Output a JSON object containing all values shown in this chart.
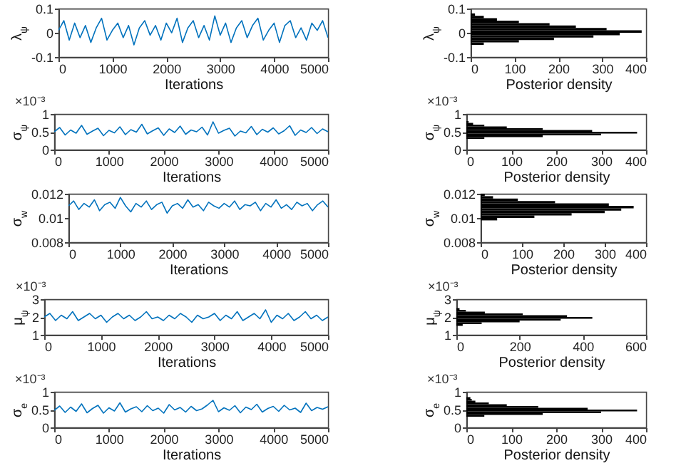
{
  "chart_data": [
    {
      "type": "line",
      "xlabel": "Iterations",
      "ylabel": "λ$_{ψ}$",
      "color": "#0072bd",
      "xlim": [
        0,
        5000
      ],
      "xticks": [
        0,
        1000,
        2000,
        3000,
        4000,
        5000
      ],
      "ylim": [
        -0.1,
        0.1
      ],
      "yticks": [
        -0.1,
        0,
        0.1
      ],
      "x": [
        0,
        100,
        200,
        300,
        400,
        500,
        600,
        700,
        800,
        900,
        1000,
        1100,
        1200,
        1300,
        1400,
        1500,
        1600,
        1700,
        1800,
        1900,
        2000,
        2100,
        2200,
        2300,
        2400,
        2500,
        2600,
        2700,
        2800,
        2900,
        3000,
        3100,
        3200,
        3300,
        3400,
        3500,
        3600,
        3700,
        3800,
        3900,
        4000,
        4100,
        4200,
        4300,
        4400,
        4500,
        4600,
        4700,
        4800,
        4900,
        5000
      ],
      "values": [
        0.01,
        0.05,
        -0.03,
        0.04,
        -0.02,
        0.03,
        -0.04,
        0.02,
        0.06,
        -0.03,
        0.01,
        0.04,
        -0.02,
        0.03,
        -0.05,
        0.02,
        0.05,
        -0.01,
        0.03,
        -0.03,
        0.04,
        0.0,
        0.06,
        -0.04,
        0.02,
        0.05,
        -0.02,
        0.03,
        -0.03,
        0.07,
        -0.01,
        0.04,
        -0.04,
        0.02,
        0.05,
        -0.02,
        0.03,
        0.06,
        -0.03,
        0.01,
        0.04,
        -0.04,
        0.03,
        0.05,
        -0.02,
        0.02,
        -0.03,
        0.04,
        0.01,
        0.05,
        -0.02
      ]
    },
    {
      "type": "histogram",
      "orientation": "horizontal",
      "xlabel": "Posterior density",
      "ylabel": "λ$_{ψ}$",
      "color": "#000000",
      "xlim": [
        0,
        400
      ],
      "xticks": [
        0,
        100,
        200,
        300,
        400
      ],
      "ylim": [
        -0.1,
        0.1
      ],
      "yticks": [
        -0.1,
        0,
        0.1
      ],
      "bins": [
        -0.05,
        -0.04,
        -0.03,
        -0.02,
        -0.01,
        0,
        0.01,
        0.02,
        0.03,
        0.04,
        0.05,
        0.06,
        0.07,
        0.08
      ],
      "values": [
        30,
        110,
        190,
        280,
        340,
        390,
        310,
        240,
        180,
        110,
        60,
        30,
        10
      ]
    },
    {
      "type": "line",
      "xlabel": "Iterations",
      "ylabel": "σ$_{ψ}$",
      "annotations": [
        "×10⁻³"
      ],
      "color": "#0072bd",
      "xlim": [
        0,
        5000
      ],
      "xticks": [
        0,
        1000,
        2000,
        3000,
        4000,
        5000
      ],
      "ylim": [
        0,
        1
      ],
      "yticks": [
        0,
        0.5,
        1
      ],
      "x": [
        0,
        100,
        200,
        300,
        400,
        500,
        600,
        700,
        800,
        900,
        1000,
        1100,
        1200,
        1300,
        1400,
        1500,
        1600,
        1700,
        1800,
        1900,
        2000,
        2100,
        2200,
        2300,
        2400,
        2500,
        2600,
        2700,
        2800,
        2900,
        3000,
        3100,
        3200,
        3300,
        3400,
        3500,
        3600,
        3700,
        3800,
        3900,
        4000,
        4100,
        4200,
        4300,
        4400,
        4500,
        4600,
        4700,
        4800,
        4900,
        5000
      ],
      "values": [
        0.5,
        0.62,
        0.41,
        0.55,
        0.46,
        0.68,
        0.43,
        0.52,
        0.6,
        0.39,
        0.54,
        0.47,
        0.64,
        0.42,
        0.56,
        0.49,
        0.71,
        0.44,
        0.53,
        0.61,
        0.4,
        0.58,
        0.48,
        0.66,
        0.43,
        0.55,
        0.5,
        0.63,
        0.41,
        0.78,
        0.46,
        0.54,
        0.6,
        0.38,
        0.52,
        0.47,
        0.65,
        0.42,
        0.57,
        0.49,
        0.61,
        0.44,
        0.53,
        0.67,
        0.4,
        0.55,
        0.48,
        0.62,
        0.45,
        0.58,
        0.5
      ]
    },
    {
      "type": "histogram",
      "orientation": "horizontal",
      "xlabel": "Posterior density",
      "ylabel": "σ$_{ψ}$",
      "annotations": [
        "×10⁻³"
      ],
      "color": "#000000",
      "xlim": [
        0,
        400
      ],
      "xticks": [
        0,
        100,
        200,
        300,
        400
      ],
      "ylim": [
        0,
        1
      ],
      "yticks": [
        0,
        0.5,
        1
      ],
      "bins": [
        0.3,
        0.35,
        0.4,
        0.45,
        0.5,
        0.55,
        0.6,
        0.65,
        0.7,
        0.75,
        0.8
      ],
      "values": [
        40,
        170,
        300,
        380,
        280,
        170,
        90,
        40,
        15,
        5
      ]
    },
    {
      "type": "line",
      "xlabel": "Iterations",
      "ylabel": "σ$_{w}$",
      "color": "#0072bd",
      "xlim": [
        0,
        5000
      ],
      "xticks": [
        0,
        1000,
        2000,
        3000,
        4000,
        5000
      ],
      "ylim": [
        0.008,
        0.012
      ],
      "yticks": [
        0.008,
        0.01,
        0.012
      ],
      "x": [
        0,
        100,
        200,
        300,
        400,
        500,
        600,
        700,
        800,
        900,
        1000,
        1100,
        1200,
        1300,
        1400,
        1500,
        1600,
        1700,
        1800,
        1900,
        2000,
        2100,
        2200,
        2300,
        2400,
        2500,
        2600,
        2700,
        2800,
        2900,
        3000,
        3100,
        3200,
        3300,
        3400,
        3500,
        3600,
        3700,
        3800,
        3900,
        4000,
        4100,
        4200,
        4300,
        4400,
        4500,
        4600,
        4700,
        4800,
        4900,
        5000
      ],
      "values": [
        0.011,
        0.0114,
        0.0107,
        0.0112,
        0.0109,
        0.0115,
        0.0106,
        0.0111,
        0.0113,
        0.0108,
        0.0117,
        0.011,
        0.0105,
        0.0112,
        0.0109,
        0.0114,
        0.0107,
        0.0111,
        0.0113,
        0.0104,
        0.011,
        0.0112,
        0.0108,
        0.0115,
        0.0109,
        0.0111,
        0.0106,
        0.0113,
        0.011,
        0.0108,
        0.0112,
        0.0109,
        0.0114,
        0.0107,
        0.0111,
        0.011,
        0.0113,
        0.0106,
        0.0112,
        0.0109,
        0.0115,
        0.0108,
        0.0111,
        0.0107,
        0.0113,
        0.011,
        0.0112,
        0.0106,
        0.0111,
        0.0114,
        0.0109
      ]
    },
    {
      "type": "histogram",
      "orientation": "horizontal",
      "xlabel": "Posterior density",
      "ylabel": "σ$_{w}$",
      "color": "#000000",
      "xlim": [
        0,
        400
      ],
      "xticks": [
        0,
        100,
        200,
        300,
        400
      ],
      "ylim": [
        0.008,
        0.012
      ],
      "yticks": [
        0.008,
        0.01,
        0.012
      ],
      "bins": [
        0.0098,
        0.01,
        0.0102,
        0.0104,
        0.0106,
        0.0108,
        0.011,
        0.0112,
        0.0114,
        0.0116,
        0.0118,
        0.012
      ],
      "values": [
        40,
        130,
        220,
        300,
        340,
        370,
        310,
        180,
        90,
        30,
        10
      ]
    },
    {
      "type": "line",
      "xlabel": "Iterations",
      "ylabel": "μ$_{ψ}$",
      "annotations": [
        "×10⁻³"
      ],
      "color": "#0072bd",
      "xlim": [
        0,
        5000
      ],
      "xticks": [
        0,
        1000,
        2000,
        3000,
        4000,
        5000
      ],
      "ylim": [
        1,
        3
      ],
      "yticks": [
        1,
        2,
        3
      ],
      "x": [
        0,
        100,
        200,
        300,
        400,
        500,
        600,
        700,
        800,
        900,
        1000,
        1100,
        1200,
        1300,
        1400,
        1500,
        1600,
        1700,
        1800,
        1900,
        2000,
        2100,
        2200,
        2300,
        2400,
        2500,
        2600,
        2700,
        2800,
        2900,
        3000,
        3100,
        3200,
        3300,
        3400,
        3500,
        3600,
        3700,
        3800,
        3900,
        4000,
        4100,
        4200,
        4300,
        4400,
        4500,
        4600,
        4700,
        4800,
        4900,
        5000
      ],
      "values": [
        2.0,
        2.2,
        1.8,
        2.1,
        1.9,
        2.3,
        1.8,
        2.0,
        2.2,
        1.9,
        2.1,
        1.7,
        2.0,
        2.2,
        1.9,
        2.1,
        1.8,
        2.0,
        2.3,
        1.9,
        2.0,
        1.8,
        2.1,
        1.9,
        2.2,
        2.0,
        1.7,
        2.1,
        1.9,
        2.0,
        2.2,
        1.8,
        2.1,
        1.9,
        2.3,
        1.8,
        2.0,
        2.2,
        1.9,
        2.4,
        1.7,
        2.1,
        1.9,
        2.2,
        1.8,
        2.0,
        2.3,
        1.9,
        2.1,
        1.8,
        2.0
      ]
    },
    {
      "type": "histogram",
      "orientation": "horizontal",
      "xlabel": "Posterior density",
      "ylabel": "μ$_{ψ}$",
      "annotations": [
        "×10⁻³"
      ],
      "color": "#000000",
      "xlim": [
        0,
        600
      ],
      "xticks": [
        0,
        200,
        400,
        600
      ],
      "ylim": [
        1,
        3
      ],
      "yticks": [
        1,
        2,
        3
      ],
      "bins": [
        1.5,
        1.6,
        1.7,
        1.8,
        1.9,
        2.0,
        2.1,
        2.2,
        2.3,
        2.4,
        2.5
      ],
      "values": [
        20,
        80,
        200,
        330,
        430,
        350,
        210,
        90,
        30,
        10
      ]
    },
    {
      "type": "line",
      "xlabel": "Iterations",
      "ylabel": "σ$_{e}$",
      "annotations": [
        "×10⁻³"
      ],
      "color": "#0072bd",
      "xlim": [
        0,
        5000
      ],
      "xticks": [
        0,
        1000,
        2000,
        3000,
        4000,
        5000
      ],
      "ylim": [
        0,
        1
      ],
      "yticks": [
        0,
        0.5,
        1
      ],
      "x": [
        0,
        100,
        200,
        300,
        400,
        500,
        600,
        700,
        800,
        900,
        1000,
        1100,
        1200,
        1300,
        1400,
        1500,
        1600,
        1700,
        1800,
        1900,
        2000,
        2100,
        2200,
        2300,
        2400,
        2500,
        2600,
        2700,
        2800,
        2900,
        3000,
        3100,
        3200,
        3300,
        3400,
        3500,
        3600,
        3700,
        3800,
        3900,
        4000,
        4100,
        4200,
        4300,
        4400,
        4500,
        4600,
        4700,
        4800,
        4900,
        5000
      ],
      "values": [
        0.48,
        0.6,
        0.42,
        0.57,
        0.45,
        0.66,
        0.41,
        0.53,
        0.62,
        0.4,
        0.55,
        0.46,
        0.69,
        0.43,
        0.52,
        0.58,
        0.44,
        0.61,
        0.47,
        0.54,
        0.4,
        0.64,
        0.49,
        0.56,
        0.43,
        0.59,
        0.47,
        0.52,
        0.63,
        0.76,
        0.44,
        0.55,
        0.48,
        0.61,
        0.41,
        0.57,
        0.5,
        0.65,
        0.43,
        0.53,
        0.59,
        0.45,
        0.62,
        0.49,
        0.54,
        0.42,
        0.68,
        0.47,
        0.56,
        0.51,
        0.58
      ]
    },
    {
      "type": "histogram",
      "orientation": "horizontal",
      "xlabel": "Posterior density",
      "ylabel": "σ$_{e}$",
      "annotations": [
        "×10⁻³"
      ],
      "color": "#000000",
      "xlim": [
        0,
        400
      ],
      "xticks": [
        0,
        100,
        200,
        300,
        400
      ],
      "ylim": [
        0,
        1
      ],
      "yticks": [
        0,
        0.5,
        1
      ],
      "bins": [
        0.3,
        0.35,
        0.4,
        0.45,
        0.5,
        0.55,
        0.6,
        0.65,
        0.7,
        0.75,
        0.8,
        0.85
      ],
      "values": [
        40,
        170,
        300,
        380,
        270,
        160,
        90,
        50,
        20,
        12,
        9
      ]
    }
  ]
}
